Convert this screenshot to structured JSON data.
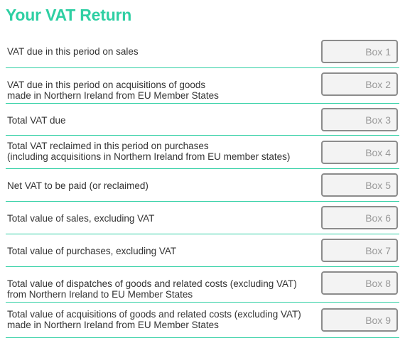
{
  "title": "Your VAT Return",
  "rows": [
    {
      "label_lines": [
        "VAT due in this period on sales"
      ],
      "box_placeholder": "Box 1"
    },
    {
      "label_lines": [
        "VAT due in this period on acquisitions of goods",
        "made in Northern Ireland from EU Member States"
      ],
      "box_placeholder": "Box 2"
    },
    {
      "label_lines": [
        "Total VAT due"
      ],
      "box_placeholder": "Box 3"
    },
    {
      "label_lines": [
        "Total VAT reclaimed in this period on purchases",
        "(including acquisitions in Northern Ireland from EU member states)"
      ],
      "box_placeholder": "Box 4"
    },
    {
      "label_lines": [
        "Net VAT to be paid (or reclaimed)"
      ],
      "box_placeholder": "Box 5"
    },
    {
      "label_lines": [
        "Total value of sales, excluding VAT"
      ],
      "box_placeholder": "Box 6"
    },
    {
      "label_lines": [
        "Total value of purchases, excluding VAT"
      ],
      "box_placeholder": "Box 7"
    },
    {
      "label_lines": [
        "Total value of dispatches of goods and related costs (excluding VAT)",
        "from Northern Ireland to EU Member States"
      ],
      "box_placeholder": "Box 8"
    },
    {
      "label_lines": [
        "Total value of acquisitions of goods and related costs (excluding VAT)",
        "made in Northern Ireland from EU Member States"
      ],
      "box_placeholder": "Box 9"
    }
  ],
  "colors": {
    "accent": "#2ecfa3",
    "text": "#333333",
    "box_border": "#8c8c8c",
    "box_fill": "#f3f3f3",
    "placeholder": "#999999"
  }
}
